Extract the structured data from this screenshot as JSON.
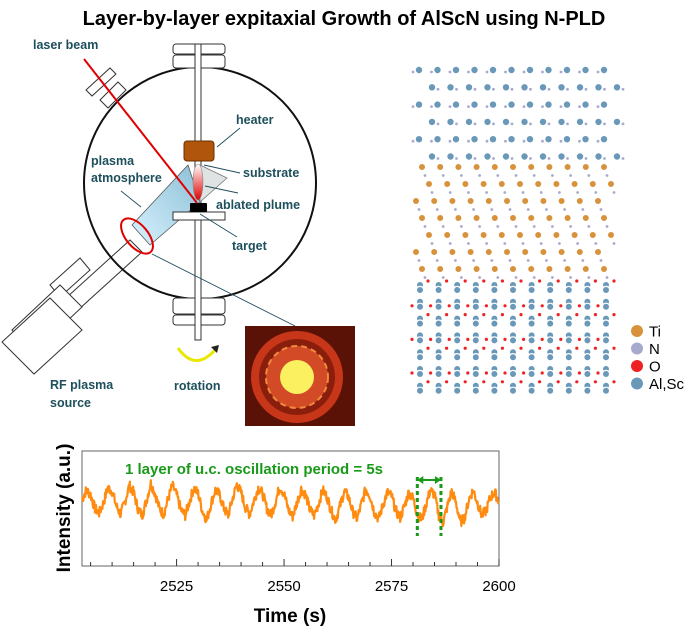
{
  "title": "Layer-by-layer expitaxial Growth of AlScN using N-PLD",
  "diagram": {
    "labels": {
      "laser_beam": "laser beam",
      "heater": "heater",
      "substrate": "substrate",
      "ablated_plume": "ablated plume",
      "target": "target",
      "plasma_atmosphere_1": "plasma",
      "plasma_atmosphere_2": "atmosphere",
      "rf_source_1": "RF plasma",
      "rf_source_2": "source",
      "rotation": "rotation"
    },
    "colors": {
      "label": "#1d4f5c",
      "laser": "#e00000",
      "heater": "#b0560c",
      "plasma": "#a8d8ec"
    }
  },
  "crystal": {
    "legend": [
      {
        "label": "Ti",
        "color": "#d9923c"
      },
      {
        "label": "N",
        "color": "#a7a9cf"
      },
      {
        "label": "O",
        "color": "#ee2222"
      },
      {
        "label": "Al,Sc",
        "color": "#6a98b8"
      }
    ]
  },
  "chart_data": {
    "type": "line",
    "xlabel": "Time (s)",
    "ylabel": "Intensity (a.u.)",
    "xlim": [
      2503,
      2600
    ],
    "ylim": [
      0,
      1
    ],
    "xticks": [
      "2525",
      "2550",
      "2575",
      "2600"
    ],
    "annotation": "1 layer of u.c. oscillation period = 5s",
    "period_markers": [
      2581,
      2586.5
    ],
    "series_color": "#ff8c10",
    "annotation_color": "#1a9a1a",
    "x_start": 2503,
    "x_step": 1,
    "y": [
      0.58,
      0.66,
      0.62,
      0.5,
      0.46,
      0.55,
      0.68,
      0.65,
      0.52,
      0.45,
      0.56,
      0.7,
      0.64,
      0.5,
      0.44,
      0.57,
      0.72,
      0.63,
      0.5,
      0.45,
      0.58,
      0.7,
      0.62,
      0.49,
      0.44,
      0.56,
      0.68,
      0.63,
      0.48,
      0.4,
      0.54,
      0.66,
      0.62,
      0.5,
      0.44,
      0.58,
      0.71,
      0.64,
      0.51,
      0.45,
      0.57,
      0.68,
      0.63,
      0.5,
      0.44,
      0.56,
      0.69,
      0.63,
      0.49,
      0.43,
      0.55,
      0.67,
      0.62,
      0.49,
      0.44,
      0.54,
      0.66,
      0.6,
      0.48,
      0.4,
      0.52,
      0.65,
      0.6,
      0.47,
      0.41,
      0.54,
      0.67,
      0.61,
      0.47,
      0.41,
      0.53,
      0.64,
      0.61,
      0.48,
      0.42,
      0.52,
      0.64,
      0.59,
      0.45,
      0.4,
      0.53,
      0.66,
      0.62,
      0.44,
      0.38,
      0.52,
      0.65,
      0.55,
      0.38,
      0.42,
      0.58,
      0.66,
      0.55,
      0.44,
      0.48,
      0.6,
      0.64,
      0.56
    ]
  }
}
